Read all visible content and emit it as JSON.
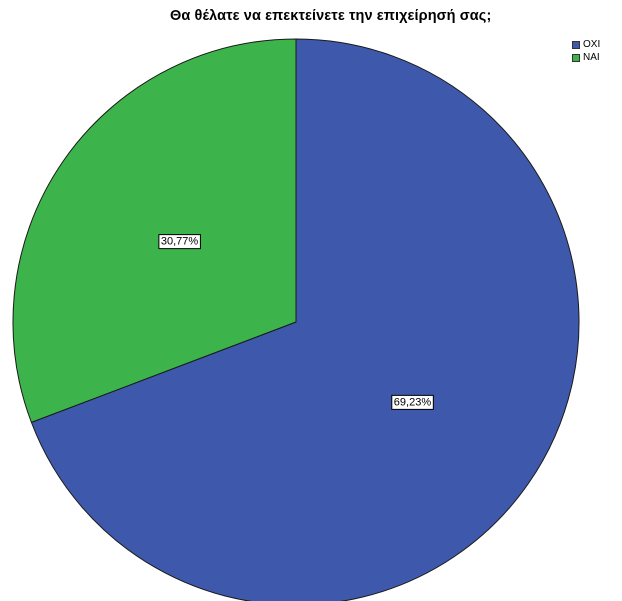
{
  "chart_data": {
    "type": "pie",
    "title": "Θα θέλατε να επεκτείνετε την επιχείρησή σας;",
    "categories": [
      "ΟΧΙ",
      "ΝΑΙ"
    ],
    "values": [
      69.23,
      30.77
    ],
    "value_labels": [
      "69,23%",
      "30,77%"
    ],
    "colors": [
      "#3e58ac",
      "#3cb44b"
    ],
    "legend_position": "top-right"
  }
}
